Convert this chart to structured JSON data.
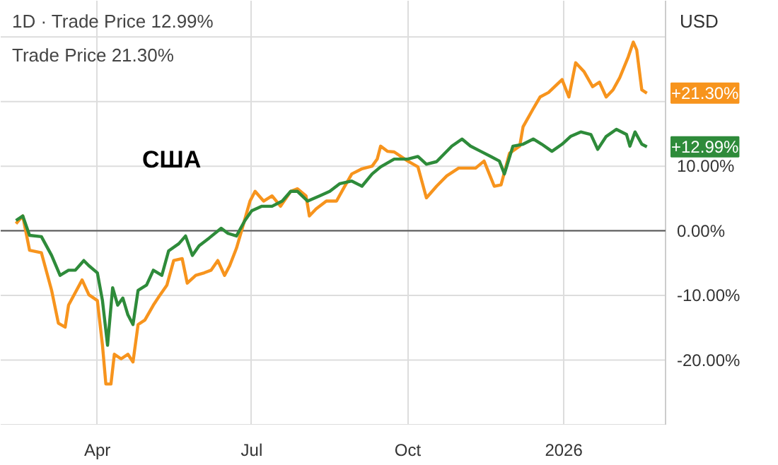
{
  "chart_data": {
    "type": "line",
    "annotations": [
      "1D · Trade Price 12.99%",
      "Trade Price 21.30%",
      "США",
      "USD",
      {
        "text": "+21.30%",
        "x": "2026-02-19",
        "y": 21.3
      },
      {
        "text": "+12.99%",
        "x": "2026-02-19",
        "y": 13.0
      }
    ],
    "series": [
      {
        "color": "#f7941d",
        "x": [
          "2025-02-12",
          "2025-02-16",
          "2025-02-20",
          "2025-02-27",
          "2025-03-05",
          "2025-03-09",
          "2025-03-13",
          "2025-03-15",
          "2025-03-23",
          "2025-03-27",
          "2025-04-01",
          "2025-04-04",
          "2025-04-06",
          "2025-04-09",
          "2025-04-11",
          "2025-04-15",
          "2025-04-19",
          "2025-04-22",
          "2025-04-25",
          "2025-04-29",
          "2025-05-04",
          "2025-05-08",
          "2025-05-12",
          "2025-05-16",
          "2025-05-21",
          "2025-05-24",
          "2025-05-29",
          "2025-06-03",
          "2025-06-07",
          "2025-06-11",
          "2025-06-15",
          "2025-06-18",
          "2025-06-22",
          "2025-06-25",
          "2025-06-30",
          "2025-07-03",
          "2025-07-08",
          "2025-07-13",
          "2025-07-18",
          "2025-07-24",
          "2025-07-28",
          "2025-08-02",
          "2025-08-04",
          "2025-08-08",
          "2025-08-14",
          "2025-08-20",
          "2025-08-24",
          "2025-08-29",
          "2025-09-04",
          "2025-09-10",
          "2025-09-13",
          "2025-09-15",
          "2025-09-19",
          "2025-09-23",
          "2025-10-01",
          "2025-10-07",
          "2025-10-12",
          "2025-10-18",
          "2025-10-24",
          "2025-10-31",
          "2025-11-10",
          "2025-11-15",
          "2025-11-21",
          "2025-11-25",
          "2025-11-30",
          "2025-12-06",
          "2025-12-08",
          "2025-12-14",
          "2025-12-18",
          "2025-12-23",
          "2025-12-31",
          "2026-01-04",
          "2026-01-08",
          "2026-01-13",
          "2026-01-18",
          "2026-01-22",
          "2026-01-26",
          "2026-01-30",
          "2026-02-03",
          "2026-02-08",
          "2026-02-11",
          "2026-02-13",
          "2026-02-16",
          "2026-02-19"
        ],
        "values": [
          1.1,
          2.3,
          -3,
          -3.4,
          -9.2,
          -14.3,
          -14.9,
          -11.5,
          -7.6,
          -9.9,
          -10.8,
          -17.7,
          -23.7,
          -23.7,
          -19.1,
          -19.8,
          -19.1,
          -20.3,
          -14.5,
          -13.8,
          -11.5,
          -9.9,
          -8.4,
          -4.6,
          -4.3,
          -8.1,
          -6.9,
          -6.5,
          -6.1,
          -4.6,
          -6.9,
          -5.4,
          -2.7,
          0,
          4.6,
          6.1,
          4.6,
          5.4,
          3.8,
          6.1,
          6.5,
          5.4,
          2.3,
          3.4,
          4.6,
          4.6,
          6.5,
          8.8,
          9.6,
          10,
          11.1,
          13.1,
          12.3,
          12.2,
          10.8,
          9.9,
          5.1,
          6.9,
          8.5,
          9.7,
          9.7,
          10.8,
          6.9,
          7.1,
          12,
          13.1,
          16.1,
          18.9,
          20.7,
          21.4,
          23.4,
          20.7,
          26,
          24.6,
          22.3,
          23,
          20.7,
          21.8,
          23.7,
          26.9,
          29.2,
          28,
          21.8,
          21.3
        ]
      },
      {
        "color": "#2e8b3a",
        "x": [
          "2025-02-12",
          "2025-02-16",
          "2025-02-20",
          "2025-02-27",
          "2025-03-05",
          "2025-03-10",
          "2025-03-15",
          "2025-03-19",
          "2025-03-24",
          "2025-03-27",
          "2025-04-01",
          "2025-04-04",
          "2025-04-07",
          "2025-04-10",
          "2025-04-13",
          "2025-04-16",
          "2025-04-19",
          "2025-04-22",
          "2025-04-25",
          "2025-04-30",
          "2025-05-04",
          "2025-05-09",
          "2025-05-13",
          "2025-05-19",
          "2025-05-23",
          "2025-05-27",
          "2025-05-31",
          "2025-06-06",
          "2025-06-13",
          "2025-06-17",
          "2025-06-22",
          "2025-06-27",
          "2025-07-01",
          "2025-07-07",
          "2025-07-13",
          "2025-07-19",
          "2025-07-24",
          "2025-07-28",
          "2025-08-03",
          "2025-08-10",
          "2025-08-16",
          "2025-08-22",
          "2025-08-29",
          "2025-09-04",
          "2025-09-10",
          "2025-09-15",
          "2025-09-23",
          "2025-10-01",
          "2025-10-07",
          "2025-10-12",
          "2025-10-18",
          "2025-10-27",
          "2025-11-02",
          "2025-11-07",
          "2025-11-13",
          "2025-11-19",
          "2025-11-24",
          "2025-11-27",
          "2025-12-02",
          "2025-12-08",
          "2025-12-14",
          "2025-12-19",
          "2025-12-25",
          "2025-12-31",
          "2026-01-05",
          "2026-01-11",
          "2026-01-17",
          "2026-01-21",
          "2026-01-26",
          "2026-02-01",
          "2026-02-07",
          "2026-02-09",
          "2026-02-12",
          "2026-02-16",
          "2026-02-19"
        ],
        "values": [
          1.6,
          2.3,
          -0.7,
          -0.9,
          -3.8,
          -6.9,
          -6.1,
          -6.1,
          -4.6,
          -5.4,
          -6.5,
          -10.8,
          -17.7,
          -8.8,
          -11.5,
          -10.4,
          -13,
          -14.5,
          -9.2,
          -8.4,
          -6.1,
          -6.9,
          -3.1,
          -2,
          -0.8,
          -3.8,
          -2.3,
          -1.1,
          0.4,
          -0.4,
          -0.8,
          1.6,
          3.1,
          3.8,
          3.8,
          4.6,
          6.1,
          6.1,
          4.6,
          5.4,
          6.1,
          7.3,
          7.7,
          6.9,
          8.8,
          9.9,
          11.1,
          11.1,
          11.5,
          10.3,
          10.7,
          13.1,
          14.2,
          13.1,
          12.3,
          11.5,
          10.8,
          8.8,
          13.1,
          13.4,
          14.2,
          13.4,
          12.3,
          13.4,
          14.6,
          15.3,
          14.9,
          12.6,
          14.6,
          15.7,
          14.9,
          13.1,
          15.3,
          13.4,
          13.0
        ]
      }
    ],
    "xlim": [
      "2025-02-03",
      "2026-03-02"
    ],
    "xticks": [
      {
        "value": "2025-04-01",
        "label": "Apr"
      },
      {
        "value": "2025-07-01",
        "label": "Jul"
      },
      {
        "value": "2025-10-01",
        "label": "Oct"
      },
      {
        "value": "2026-01-01",
        "label": "2026"
      }
    ],
    "ylim": [
      -30,
      35.6
    ],
    "yticks": [
      {
        "value": -30,
        "label": null
      },
      {
        "value": -20,
        "label": "-20.00%"
      },
      {
        "value": -10,
        "label": "-10.00%"
      },
      {
        "value": 0,
        "label": "0.00%"
      },
      {
        "value": 10,
        "label": "10.00%"
      },
      {
        "value": 20,
        "label": null
      },
      {
        "value": 30,
        "label": null
      }
    ],
    "ref_lines": [
      {
        "axis": "y",
        "value": 0,
        "color": "#555555"
      }
    ],
    "grid": true,
    "marker": "none",
    "line_style": "solid"
  }
}
